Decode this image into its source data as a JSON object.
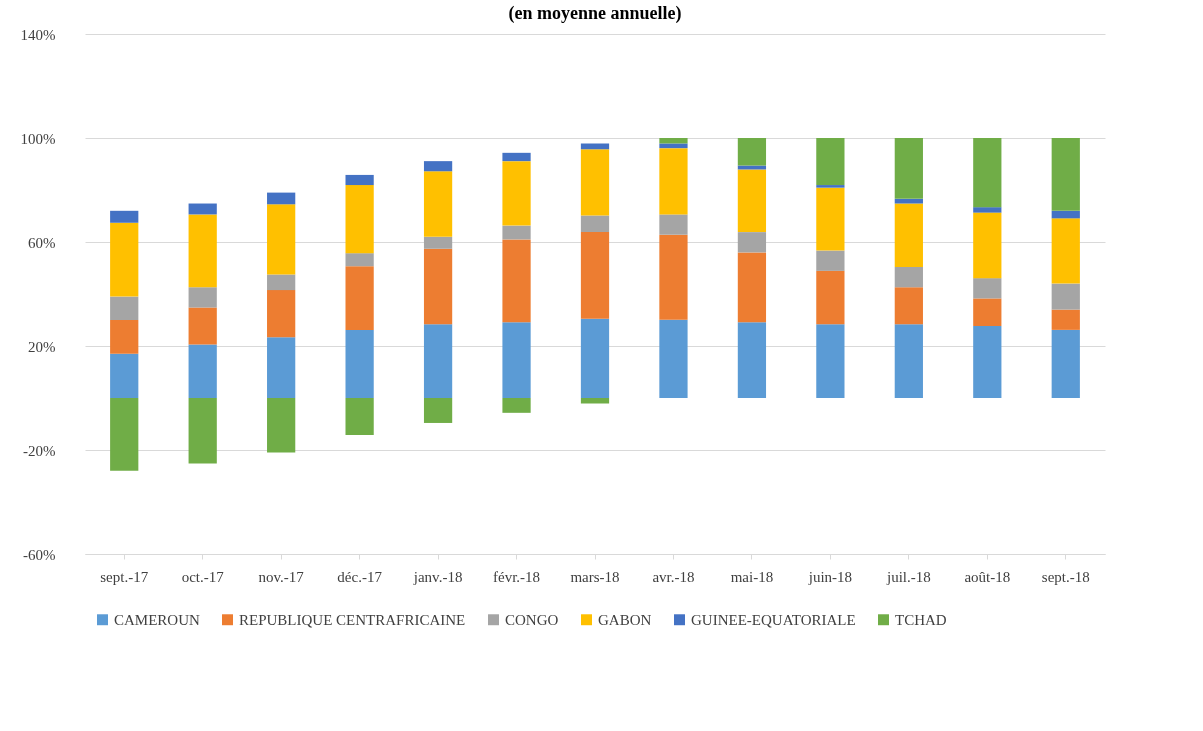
{
  "chart_data": {
    "type": "bar",
    "title": "(en moyenne annuelle)",
    "stacked": true,
    "categories": [
      "sept.-17",
      "oct.-17",
      "nov.-17",
      "déc.-17",
      "janv.-18",
      "févr.-18",
      "mars-18",
      "avr.-18",
      "mai-18",
      "juin-18",
      "juil.-18",
      "août-18",
      "sept.-18"
    ],
    "series": [
      {
        "name": "CAMEROUN",
        "color": "#5b9bd5",
        "values": [
          17,
          20.6,
          23.4,
          26.2,
          28.4,
          29.1,
          30.5,
          30.1,
          29.1,
          28.4,
          28.4,
          27.7,
          26.2
        ]
      },
      {
        "name": "REPUBLIQUE CENTRAFRICAINE",
        "color": "#ed7d31",
        "values": [
          13,
          14.2,
          18.1,
          24.5,
          29,
          31.9,
          33.3,
          32.7,
          26.9,
          20.5,
          14.2,
          10.6,
          7.8
        ]
      },
      {
        "name": "CONGO",
        "color": "#a5a5a5",
        "values": [
          9,
          7.8,
          6,
          5,
          4.6,
          5.3,
          6.4,
          7.8,
          7.8,
          7.8,
          7.8,
          7.8,
          10
        ]
      },
      {
        "name": "GABON",
        "color": "#ffc000",
        "values": [
          28.4,
          28,
          27,
          26.2,
          25.2,
          24.8,
          25.5,
          25.5,
          24.1,
          24.2,
          24.4,
          25.2,
          25.1
        ]
      },
      {
        "name": "GUINEE-EQUATORIALE",
        "color": "#4472c4",
        "values": [
          4.6,
          4.2,
          4.5,
          3.9,
          3.9,
          3.2,
          2.2,
          1.8,
          1.5,
          1,
          1.8,
          2.1,
          2.9
        ]
      },
      {
        "name": "TCHAD",
        "color": "#70ad47",
        "values": [
          -28,
          -25.2,
          -21,
          -14.2,
          -9.6,
          -5.7,
          -2.1,
          2.1,
          10.6,
          18.1,
          23.4,
          26.6,
          28
        ]
      }
    ],
    "ylim": [
      -60,
      140
    ],
    "yticks": [
      {
        "value": -60,
        "label": "-60%"
      },
      {
        "value": -20,
        "label": "-20%"
      },
      {
        "value": 20,
        "label": "20%"
      },
      {
        "value": 60,
        "label": "60%"
      },
      {
        "value": 100,
        "label": "100%"
      },
      {
        "value": 140,
        "label": "140%"
      }
    ],
    "grid": "y",
    "legend": "bottom"
  }
}
